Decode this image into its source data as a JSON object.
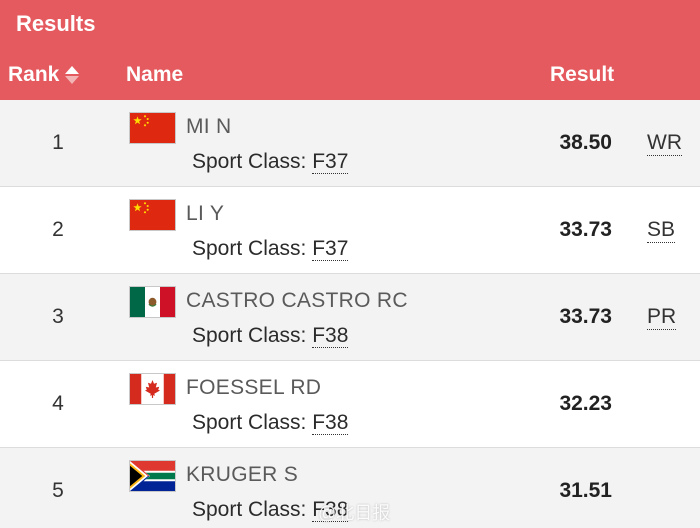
{
  "header": {
    "title": "Results",
    "col_rank": "Rank",
    "col_name": "Name",
    "col_result": "Result"
  },
  "rows": [
    {
      "rank": "1",
      "name": "MI N",
      "sport_label": "Sport Class:",
      "sport_class": "F37",
      "result": "38.50",
      "record": "WR",
      "flag": "china-flag-icon"
    },
    {
      "rank": "2",
      "name": "LI Y",
      "sport_label": "Sport Class:",
      "sport_class": "F37",
      "result": "33.73",
      "record": "SB",
      "flag": "china-flag-icon"
    },
    {
      "rank": "3",
      "name": "CASTRO CASTRO RC",
      "sport_label": "Sport Class:",
      "sport_class": "F38",
      "result": "33.73",
      "record": "PR",
      "flag": "mexico-flag-icon"
    },
    {
      "rank": "4",
      "name": "FOESSEL RD",
      "sport_label": "Sport Class:",
      "sport_class": "F38",
      "result": "32.23",
      "record": "",
      "flag": "canada-flag-icon"
    },
    {
      "rank": "5",
      "name": "KRUGER S",
      "sport_label": "Sport Class:",
      "sport_class": "F38",
      "result": "31.51",
      "record": "",
      "flag": "south-africa-flag-icon"
    }
  ],
  "watermark": "@北日报",
  "colors": {
    "header_bg": "#e45a5e",
    "row_alt": "#f3f3f4"
  }
}
